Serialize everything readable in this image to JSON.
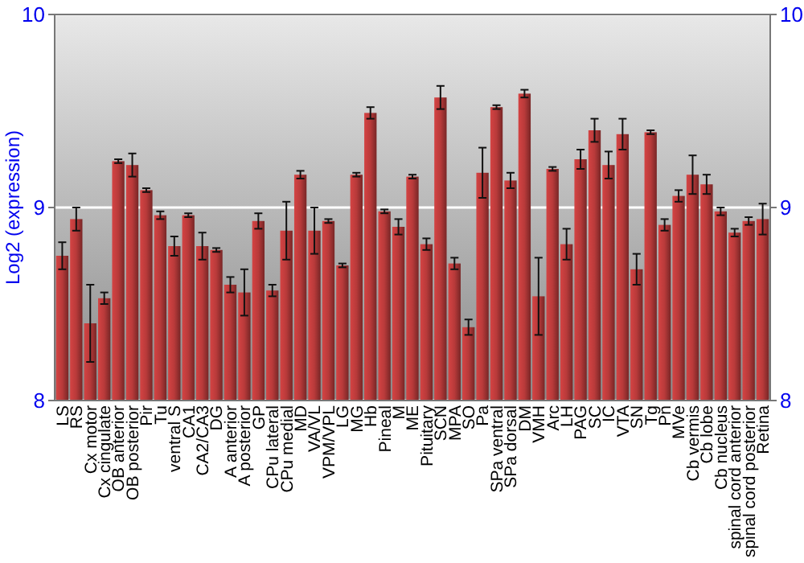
{
  "chart_data": {
    "type": "bar",
    "ylabel": "Log2 (expression)",
    "categories": [
      "LS",
      "RS",
      "Cx motor",
      "Cx cingulate",
      "OB anterior",
      "OB posterior",
      "Pir",
      "Tu",
      "ventral S",
      "CA1",
      "CA2/CA3",
      "DG",
      "A anterior",
      "A posterior",
      "GP",
      "CPu lateral",
      "CPu medial",
      "MD",
      "VA/VL",
      "VPM/VPL",
      "LG",
      "MG",
      "Hb",
      "Pineal",
      "M",
      "ME",
      "Pituitary",
      "SCN",
      "MPA",
      "SO",
      "Pa",
      "SPa ventral",
      "SPa dorsal",
      "DM",
      "VMH",
      "Arc",
      "LH",
      "PAG",
      "SC",
      "IC",
      "VTA",
      "SN",
      "Tg",
      "Pn",
      "MVe",
      "Cb vermis",
      "Cb lobe",
      "Cb nucleus",
      "spinal cord anterior",
      "spinal cord posterior",
      "Retina"
    ],
    "values": [
      8.75,
      8.94,
      8.4,
      8.53,
      9.24,
      9.22,
      9.09,
      8.96,
      8.8,
      8.96,
      8.8,
      8.78,
      8.6,
      8.56,
      8.93,
      8.57,
      8.88,
      9.17,
      8.88,
      8.93,
      8.7,
      9.17,
      9.49,
      8.98,
      8.9,
      9.16,
      8.81,
      9.57,
      8.71,
      8.38,
      9.18,
      9.52,
      9.14,
      9.59,
      8.54,
      9.2,
      8.81,
      9.25,
      9.4,
      9.22,
      9.38,
      8.68,
      9.39,
      8.91,
      9.06,
      9.17,
      9.12,
      8.98,
      8.87,
      8.93,
      8.94
    ],
    "errors": [
      0.07,
      0.06,
      0.2,
      0.03,
      0.01,
      0.06,
      0.01,
      0.02,
      0.05,
      0.01,
      0.07,
      0.01,
      0.04,
      0.12,
      0.04,
      0.03,
      0.15,
      0.02,
      0.12,
      0.01,
      0.01,
      0.01,
      0.03,
      0.01,
      0.04,
      0.01,
      0.03,
      0.06,
      0.03,
      0.04,
      0.13,
      0.01,
      0.04,
      0.02,
      0.2,
      0.01,
      0.08,
      0.05,
      0.06,
      0.07,
      0.08,
      0.08,
      0.01,
      0.03,
      0.03,
      0.1,
      0.05,
      0.02,
      0.02,
      0.02,
      0.08
    ],
    "color": "#b83a3a",
    "ylim": [
      8,
      10
    ],
    "yticks": [
      8,
      9,
      10
    ],
    "y2lim": [
      8,
      10
    ],
    "y2ticks": [
      8,
      9,
      10
    ],
    "grid": "y"
  }
}
